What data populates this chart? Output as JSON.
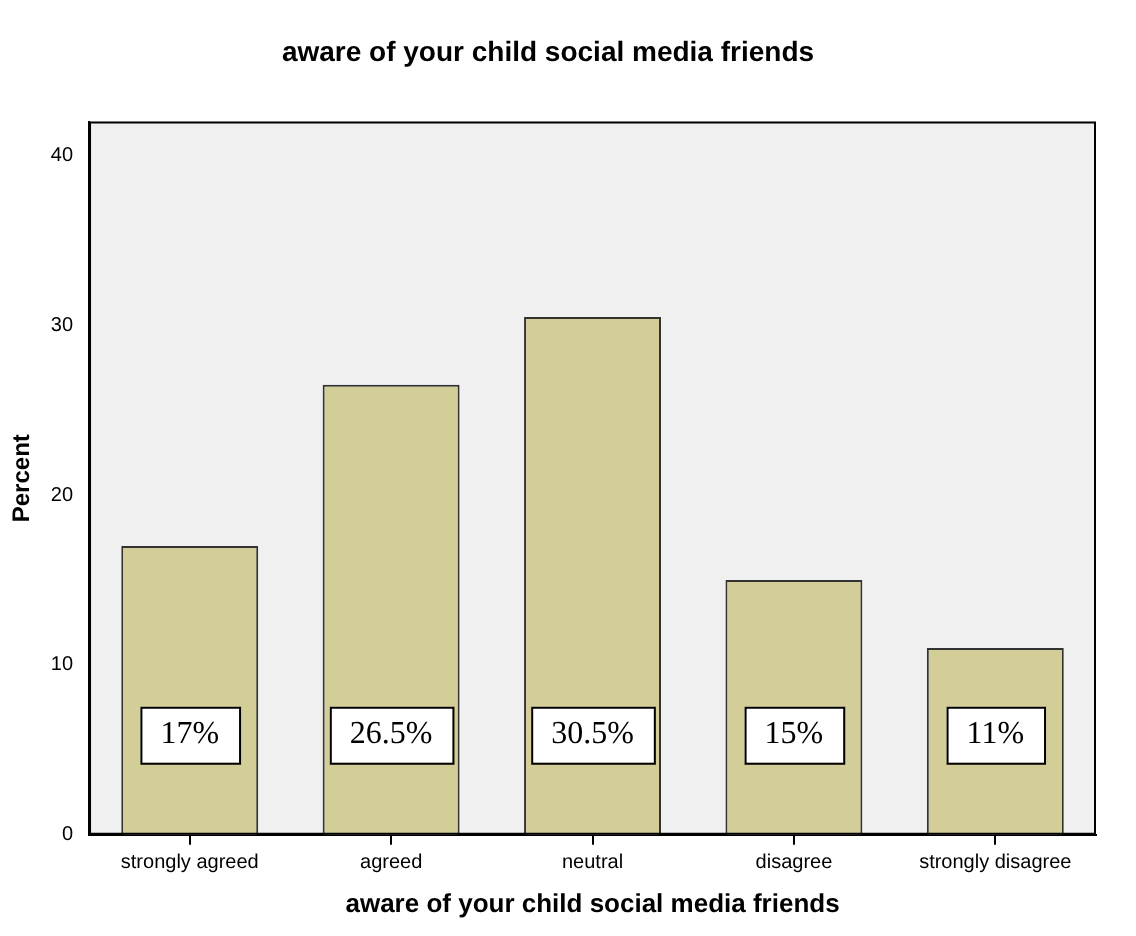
{
  "chart_data": {
    "type": "bar",
    "title": "aware of your child social media friends",
    "xlabel": "aware of your child social media friends",
    "ylabel": "Percent",
    "categories": [
      "strongly agreed",
      "agreed",
      "neutral",
      "disagree",
      "strongly disagree"
    ],
    "values": [
      17,
      26.5,
      30.5,
      15,
      11
    ],
    "value_labels": [
      "17%",
      "26.5%",
      "30.5%",
      "15%",
      "11%"
    ],
    "color": "#d3ce97",
    "ylim": [
      0,
      42
    ],
    "yticks": [
      0,
      10,
      20,
      30,
      40
    ],
    "grid": false,
    "legend": false
  }
}
